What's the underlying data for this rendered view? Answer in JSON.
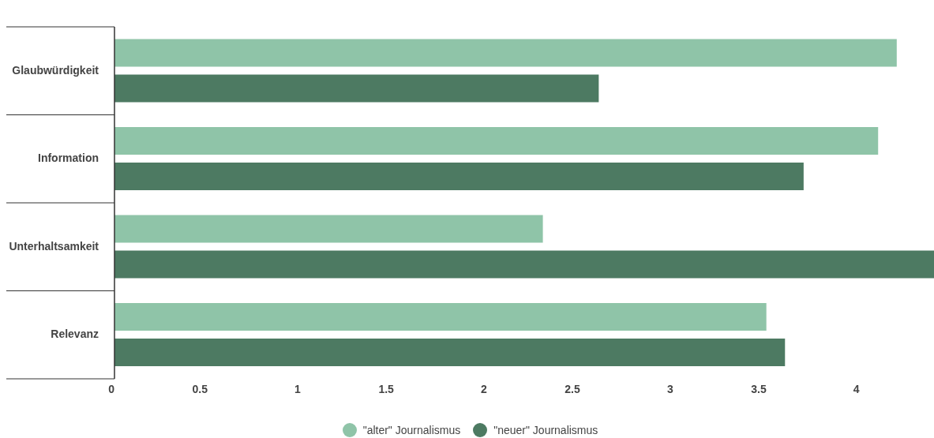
{
  "chart_data": {
    "type": "bar",
    "orientation": "horizontal",
    "categories": [
      "Glaubwürdigkeit",
      "Information",
      "Unterhaltsamkeit",
      "Relevanz"
    ],
    "series": [
      {
        "name": "\"alter\" Journalismus",
        "color": "#8fc4a8",
        "values": [
          4.2,
          4.1,
          2.3,
          3.5
        ]
      },
      {
        "name": "\"neuer\" Journalismus",
        "color": "#4d7a62",
        "values": [
          2.6,
          3.7,
          4.4,
          3.6
        ]
      }
    ],
    "xlim": [
      0,
      4.4
    ],
    "xticks": [
      0,
      0.5,
      1,
      1.5,
      2,
      2.5,
      3,
      3.5,
      4
    ],
    "grid": false,
    "legend": "bottom"
  }
}
